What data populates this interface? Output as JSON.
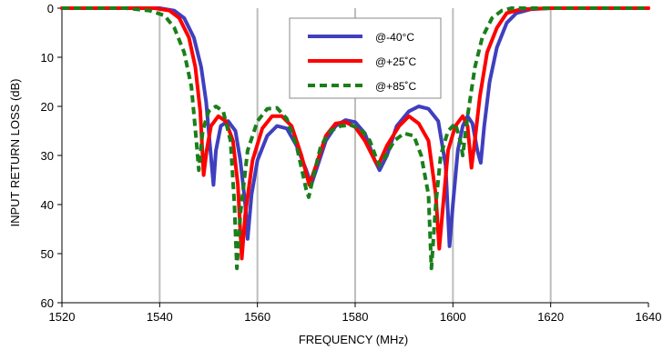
{
  "chart_data": {
    "type": "line",
    "xlabel": "FREQUENCY  (MHz)",
    "ylabel": "INPUT RETURN LOSS (dB)",
    "xlim": [
      1520,
      1640
    ],
    "ylim": [
      0,
      60
    ],
    "y_inverted": true,
    "xticks": [
      1520,
      1540,
      1560,
      1580,
      1600,
      1620,
      1640
    ],
    "yticks": [
      0,
      10,
      20,
      30,
      40,
      50,
      60
    ],
    "grid": "vertical",
    "legend_position": "top-center",
    "series": [
      {
        "name": "@-40°C",
        "color": "#3f3fbf",
        "style": "solid",
        "points": [
          [
            1520,
            0
          ],
          [
            1540,
            0
          ],
          [
            1543,
            0.5
          ],
          [
            1545,
            2
          ],
          [
            1547,
            6
          ],
          [
            1548.5,
            12
          ],
          [
            1549.5,
            19
          ],
          [
            1550.3,
            28
          ],
          [
            1551,
            36
          ],
          [
            1551.5,
            29
          ],
          [
            1552.5,
            24
          ],
          [
            1554,
            23
          ],
          [
            1555.5,
            25
          ],
          [
            1556.5,
            31
          ],
          [
            1557.5,
            40
          ],
          [
            1558,
            47
          ],
          [
            1558.8,
            38
          ],
          [
            1560,
            31
          ],
          [
            1562,
            26
          ],
          [
            1564,
            24
          ],
          [
            1566,
            24.5
          ],
          [
            1568,
            28
          ],
          [
            1570,
            33
          ],
          [
            1571,
            36
          ],
          [
            1572,
            33
          ],
          [
            1574,
            27
          ],
          [
            1576,
            24
          ],
          [
            1578,
            22.8
          ],
          [
            1580,
            23.2
          ],
          [
            1582,
            25.5
          ],
          [
            1584,
            31
          ],
          [
            1585,
            33
          ],
          [
            1586.5,
            30
          ],
          [
            1588.5,
            24
          ],
          [
            1591,
            21
          ],
          [
            1593,
            20
          ],
          [
            1595,
            20.5
          ],
          [
            1597,
            23
          ],
          [
            1598.5,
            32
          ],
          [
            1599.3,
            48.5
          ],
          [
            1600,
            40
          ],
          [
            1601,
            29
          ],
          [
            1602,
            24
          ],
          [
            1603,
            22
          ],
          [
            1604,
            23.5
          ],
          [
            1605,
            29
          ],
          [
            1605.7,
            31.5
          ],
          [
            1606.4,
            24
          ],
          [
            1607.5,
            15
          ],
          [
            1609,
            8
          ],
          [
            1611,
            3
          ],
          [
            1613,
            1
          ],
          [
            1616,
            0.2
          ],
          [
            1620,
            0
          ],
          [
            1640,
            0
          ]
        ]
      },
      {
        "name": "@+25˚C",
        "color": "#ff0000",
        "style": "solid",
        "points": [
          [
            1520,
            0
          ],
          [
            1539,
            0
          ],
          [
            1542,
            0.5
          ],
          [
            1544,
            2
          ],
          [
            1546,
            6
          ],
          [
            1547.3,
            12
          ],
          [
            1548.3,
            21
          ],
          [
            1549,
            34
          ],
          [
            1549.6,
            29
          ],
          [
            1550.5,
            24
          ],
          [
            1552,
            22
          ],
          [
            1553.5,
            23
          ],
          [
            1555,
            27
          ],
          [
            1556,
            36
          ],
          [
            1556.8,
            51
          ],
          [
            1557.5,
            42
          ],
          [
            1559,
            31
          ],
          [
            1561,
            24.5
          ],
          [
            1563,
            22
          ],
          [
            1565,
            22
          ],
          [
            1567,
            24
          ],
          [
            1569,
            30
          ],
          [
            1570.6,
            36
          ],
          [
            1572,
            32
          ],
          [
            1574,
            26
          ],
          [
            1576,
            23.5
          ],
          [
            1578,
            23.2
          ],
          [
            1580,
            24.2
          ],
          [
            1582,
            27
          ],
          [
            1584,
            31
          ],
          [
            1584.7,
            32
          ],
          [
            1586.5,
            28
          ],
          [
            1589,
            24
          ],
          [
            1591,
            22
          ],
          [
            1593,
            23.5
          ],
          [
            1595,
            27
          ],
          [
            1596.5,
            38
          ],
          [
            1597.2,
            49
          ],
          [
            1598,
            40
          ],
          [
            1599,
            29
          ],
          [
            1600.5,
            24
          ],
          [
            1602,
            22
          ],
          [
            1603,
            24
          ],
          [
            1603.8,
            32.5
          ],
          [
            1604.6,
            26
          ],
          [
            1605.5,
            18
          ],
          [
            1607,
            9
          ],
          [
            1609,
            4
          ],
          [
            1611,
            1
          ],
          [
            1614,
            0.2
          ],
          [
            1620,
            0
          ],
          [
            1640,
            0
          ]
        ]
      },
      {
        "name": "@+85˚C",
        "color": "#1a7f1a",
        "style": "dashed",
        "points": [
          [
            1520,
            0
          ],
          [
            1533,
            0
          ],
          [
            1538,
            0.5
          ],
          [
            1541,
            1.5
          ],
          [
            1543,
            4
          ],
          [
            1545,
            9
          ],
          [
            1546.5,
            16
          ],
          [
            1547.5,
            27
          ],
          [
            1548,
            33
          ],
          [
            1548.8,
            25
          ],
          [
            1550,
            21
          ],
          [
            1551.5,
            20
          ],
          [
            1553,
            21
          ],
          [
            1554.5,
            27
          ],
          [
            1555.3,
            40
          ],
          [
            1555.8,
            53
          ],
          [
            1556.5,
            42
          ],
          [
            1558,
            29
          ],
          [
            1560,
            23
          ],
          [
            1562,
            20.5
          ],
          [
            1564,
            20.3
          ],
          [
            1566,
            22.5
          ],
          [
            1568,
            28
          ],
          [
            1570,
            37
          ],
          [
            1570.5,
            38.5
          ],
          [
            1571.5,
            34
          ],
          [
            1573,
            28
          ],
          [
            1575,
            25
          ],
          [
            1577,
            24
          ],
          [
            1579,
            23.8
          ],
          [
            1581,
            24.5
          ],
          [
            1583,
            27
          ],
          [
            1584.5,
            31
          ],
          [
            1585,
            32
          ],
          [
            1586.3,
            30
          ],
          [
            1588,
            27
          ],
          [
            1590,
            25.5
          ],
          [
            1592,
            26
          ],
          [
            1593.5,
            30
          ],
          [
            1595,
            38
          ],
          [
            1595.6,
            53
          ],
          [
            1596.5,
            40
          ],
          [
            1597.5,
            30
          ],
          [
            1599,
            25
          ],
          [
            1600.5,
            23.5
          ],
          [
            1601.5,
            27
          ],
          [
            1602,
            30
          ],
          [
            1603,
            22
          ],
          [
            1604.5,
            12
          ],
          [
            1606,
            6
          ],
          [
            1608,
            2
          ],
          [
            1610,
            0.5
          ],
          [
            1612,
            0
          ],
          [
            1640,
            0
          ]
        ]
      }
    ]
  }
}
